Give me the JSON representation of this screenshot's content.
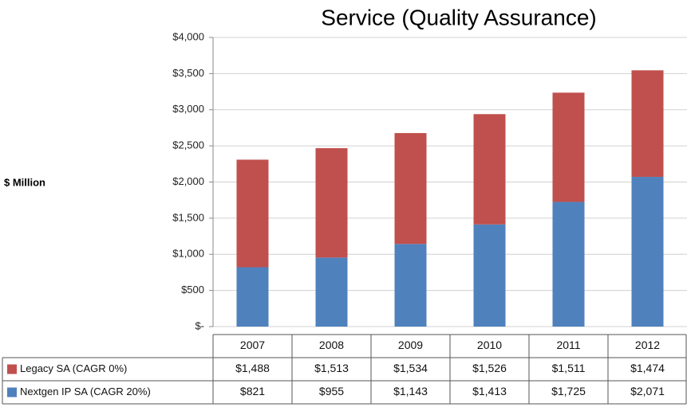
{
  "chart_data": {
    "type": "bar",
    "stacked": true,
    "title": "Service (Quality Assurance)",
    "ylabel": "$ Million",
    "categories": [
      "2007",
      "2008",
      "2009",
      "2010",
      "2011",
      "2012"
    ],
    "series": [
      {
        "name": "Legacy SA (CAGR 0%)",
        "color": "#c0504d",
        "values": [
          1488,
          1513,
          1534,
          1526,
          1511,
          1474
        ],
        "value_labels": [
          "$1,488",
          "$1,513",
          "$1,534",
          "$1,526",
          "$1,511",
          "$1,474"
        ]
      },
      {
        "name": "Nextgen IP SA (CAGR 20%)",
        "color": "#4f81bd",
        "values": [
          821,
          955,
          1143,
          1413,
          1725,
          2071
        ],
        "value_labels": [
          "$821",
          "$955",
          "$1,143",
          "$1,413",
          "$1,725",
          "$2,071"
        ]
      }
    ],
    "ylim": [
      0,
      4000
    ],
    "yticks": [
      {
        "value": 0,
        "label": "$-"
      },
      {
        "value": 500,
        "label": "$500"
      },
      {
        "value": 1000,
        "label": "$1,000"
      },
      {
        "value": 1500,
        "label": "$1,500"
      },
      {
        "value": 2000,
        "label": "$2,000"
      },
      {
        "value": 2500,
        "label": "$2,500"
      },
      {
        "value": 3000,
        "label": "$3,000"
      },
      {
        "value": 3500,
        "label": "$3,500"
      },
      {
        "value": 4000,
        "label": "$4,000"
      }
    ],
    "grid": true
  }
}
